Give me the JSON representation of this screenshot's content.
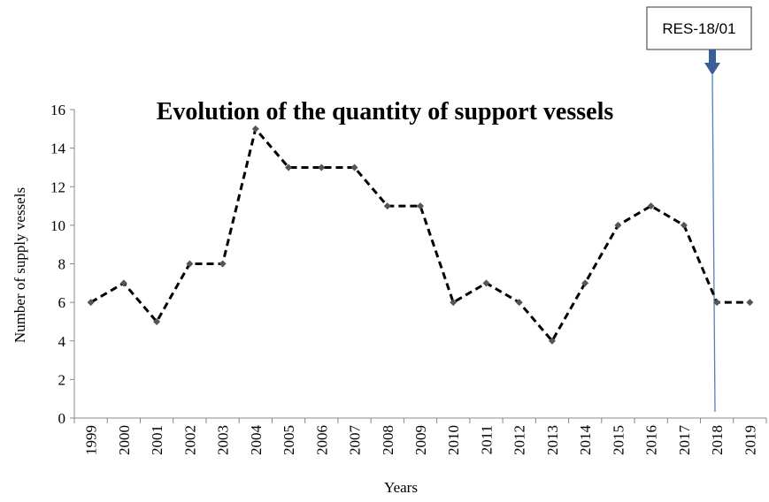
{
  "chart_data": {
    "type": "line",
    "title": "Evolution of the quantity of support vessels",
    "x_label": "Years",
    "y_label": "Number of supply vessels",
    "categories": [
      "1999",
      "2000",
      "2001",
      "2002",
      "2003",
      "2004",
      "2005",
      "2006",
      "2007",
      "2008",
      "2009",
      "2010",
      "2011",
      "2012",
      "2013",
      "2014",
      "2015",
      "2016",
      "2017",
      "2018",
      "2019"
    ],
    "series": [
      {
        "name": "Number of supply vessels",
        "color": "#000000",
        "values": [
          6,
          7,
          5,
          8,
          8,
          15,
          13,
          13,
          13,
          11,
          11,
          6,
          7,
          6,
          4,
          7,
          10,
          11,
          10,
          6,
          6
        ]
      }
    ],
    "ylim": [
      0,
      16
    ],
    "yticks": [
      0,
      2,
      4,
      6,
      8,
      10,
      12,
      14,
      16
    ],
    "grid": false,
    "annotation": "RES-18/01"
  }
}
